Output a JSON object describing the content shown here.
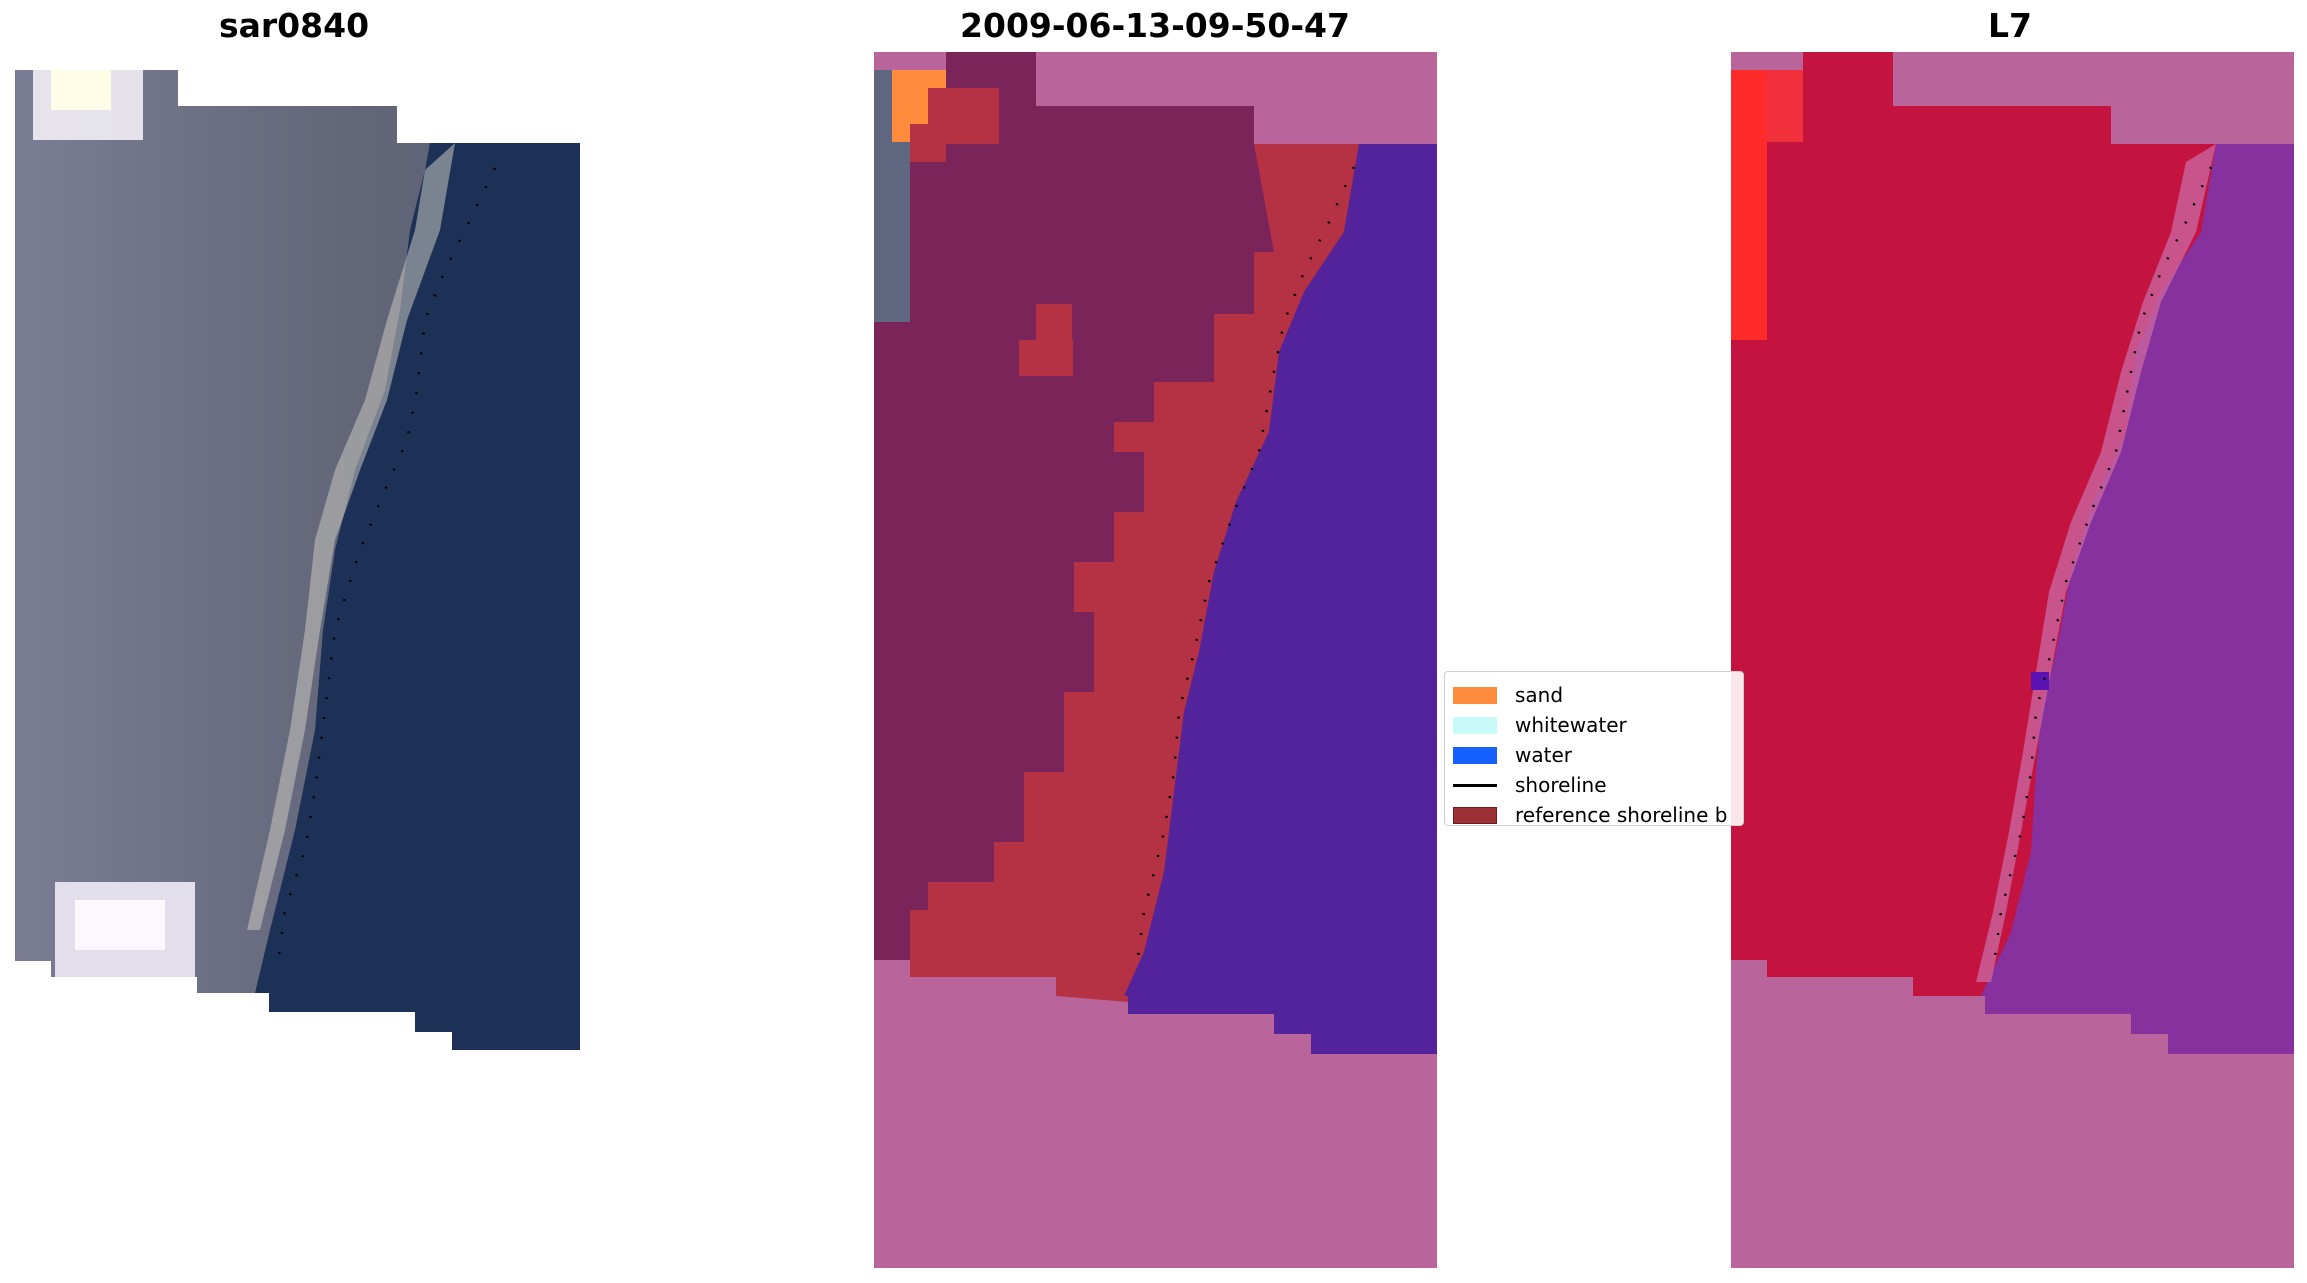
{
  "panels": {
    "left_title": "sar0840",
    "middle_title": "2009-06-13-09-50-47",
    "right_title": "L7"
  },
  "legend": {
    "items": [
      {
        "label": "sand",
        "color": "#ff8c3c"
      },
      {
        "label": "whitewater",
        "color": "#c8fafa"
      },
      {
        "label": "water",
        "color": "#1660ff"
      },
      {
        "label": "shoreline",
        "color": "#000000"
      },
      {
        "label": "reference shoreline b",
        "color": "#9b3035"
      }
    ]
  },
  "colors": {
    "sea_rgb": "#1d3157",
    "land_rgb": "#6a6c80",
    "cloud": "#f2eef6",
    "nodata_mask": "#b9649a",
    "land_class": "#7a2459",
    "buffer": "#b53244",
    "water_class": "#52239b",
    "mndwi_land": "#c4133f",
    "mndwi_water": "#86319e",
    "mndwi_high": "#ff2a2a"
  }
}
